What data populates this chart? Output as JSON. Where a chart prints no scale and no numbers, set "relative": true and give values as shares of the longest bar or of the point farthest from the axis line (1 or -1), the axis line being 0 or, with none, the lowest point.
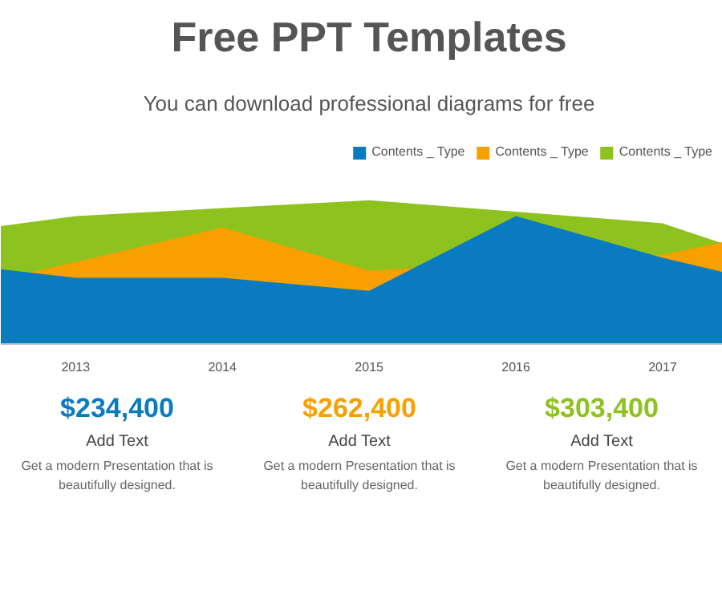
{
  "chart_data": {
    "type": "area",
    "title": "Free PPT Templates",
    "subtitle": "You can download professional diagrams for free",
    "x": [
      2012.49,
      2013,
      2014,
      2015,
      2016,
      2017,
      2017.41
    ],
    "xlim": [
      2012.49,
      2017.41
    ],
    "xticks": [
      2013,
      2014,
      2015,
      2016,
      2017
    ],
    "relative": true,
    "legend": "top right",
    "series": [
      {
        "name": "Contents _ Type",
        "color": "#0b7bc1",
        "values": [
          0.52,
          0.46,
          0.46,
          0.37,
          0.89,
          0.6,
          0.5
        ]
      },
      {
        "name": "Contents _ Type",
        "color": "#f7a000",
        "values": [
          0.45,
          0.57,
          0.81,
          0.51,
          null,
          0.62,
          0.71
        ]
      },
      {
        "name": "Contents _ Type",
        "color": "#8dc21f",
        "values": [
          0.82,
          0.89,
          null,
          1.0,
          null,
          0.84,
          0.7
        ]
      }
    ],
    "annotations": [
      "$234,400",
      "Add Text",
      "Get a modern Presentation that is beautifully designed.",
      "$262,400",
      "Add Text",
      "Get a modern Presentation that is beautifully designed.",
      "$303,400",
      "Add Text",
      "Get a modern Presentation that is beautifully designed."
    ]
  }
}
